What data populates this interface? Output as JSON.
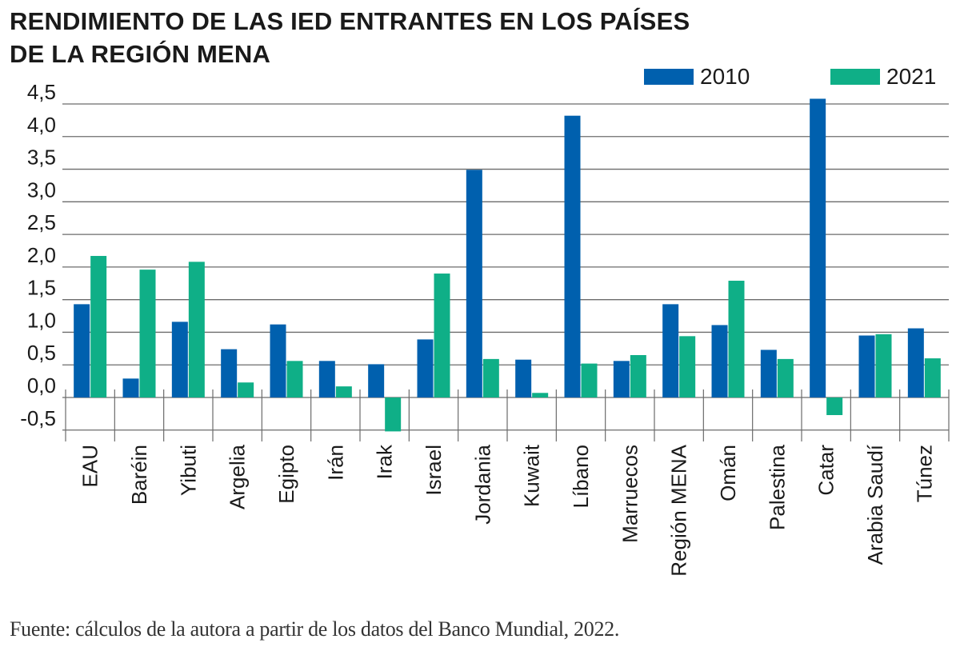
{
  "title": "RENDIMIENTO DE LAS IED ENTRANTES EN LOS PAÍSES DE LA REGIÓN MENA",
  "title_lines": [
    "RENDIMIENTO DE LAS IED ENTRANTES EN LOS PAÍSES",
    "DE LA REGIÓN MENA"
  ],
  "source": "Fuente: cálculos de la autora a partir de los datos del Banco Mundial, 2022.",
  "chart_data": {
    "type": "bar",
    "title": "RENDIMIENTO DE LAS IED ENTRANTES EN LOS PAÍSES DE LA REGIÓN MENA",
    "xlabel": "",
    "ylabel": "",
    "ylim": [
      -0.5,
      4.5
    ],
    "yticks": [
      -0.5,
      0.0,
      0.5,
      1.0,
      1.5,
      2.0,
      2.5,
      3.0,
      3.5,
      4.0,
      4.5
    ],
    "ytick_labels": [
      "-0,5",
      "0,0",
      "0,5",
      "1,0",
      "1,5",
      "2,0",
      "2,5",
      "3,0",
      "3,5",
      "4,0",
      "4,5"
    ],
    "grid": true,
    "legend_position": "top-right",
    "categories": [
      "EAU",
      "Baréin",
      "Yibuti",
      "Argelia",
      "Egipto",
      "Irán",
      "Irak",
      "Israel",
      "Jordania",
      "Kuwait",
      "Líbano",
      "Marruecos",
      "Región MENA",
      "Omán",
      "Palestina",
      "Catar",
      "Arabia Saudí",
      "Túnez"
    ],
    "series": [
      {
        "name": "2010",
        "color": "#0060ae",
        "values": [
          1.43,
          0.29,
          1.16,
          0.74,
          1.12,
          0.56,
          0.51,
          0.89,
          3.49,
          0.58,
          4.32,
          0.56,
          1.43,
          1.11,
          0.73,
          4.58,
          0.95,
          1.06
        ]
      },
      {
        "name": "2021",
        "color": "#0faf87",
        "values": [
          2.17,
          1.96,
          2.08,
          0.23,
          0.56,
          0.17,
          -0.52,
          1.9,
          0.59,
          0.07,
          0.52,
          0.65,
          0.94,
          1.79,
          0.59,
          -0.27,
          0.97,
          0.6
        ]
      }
    ]
  }
}
